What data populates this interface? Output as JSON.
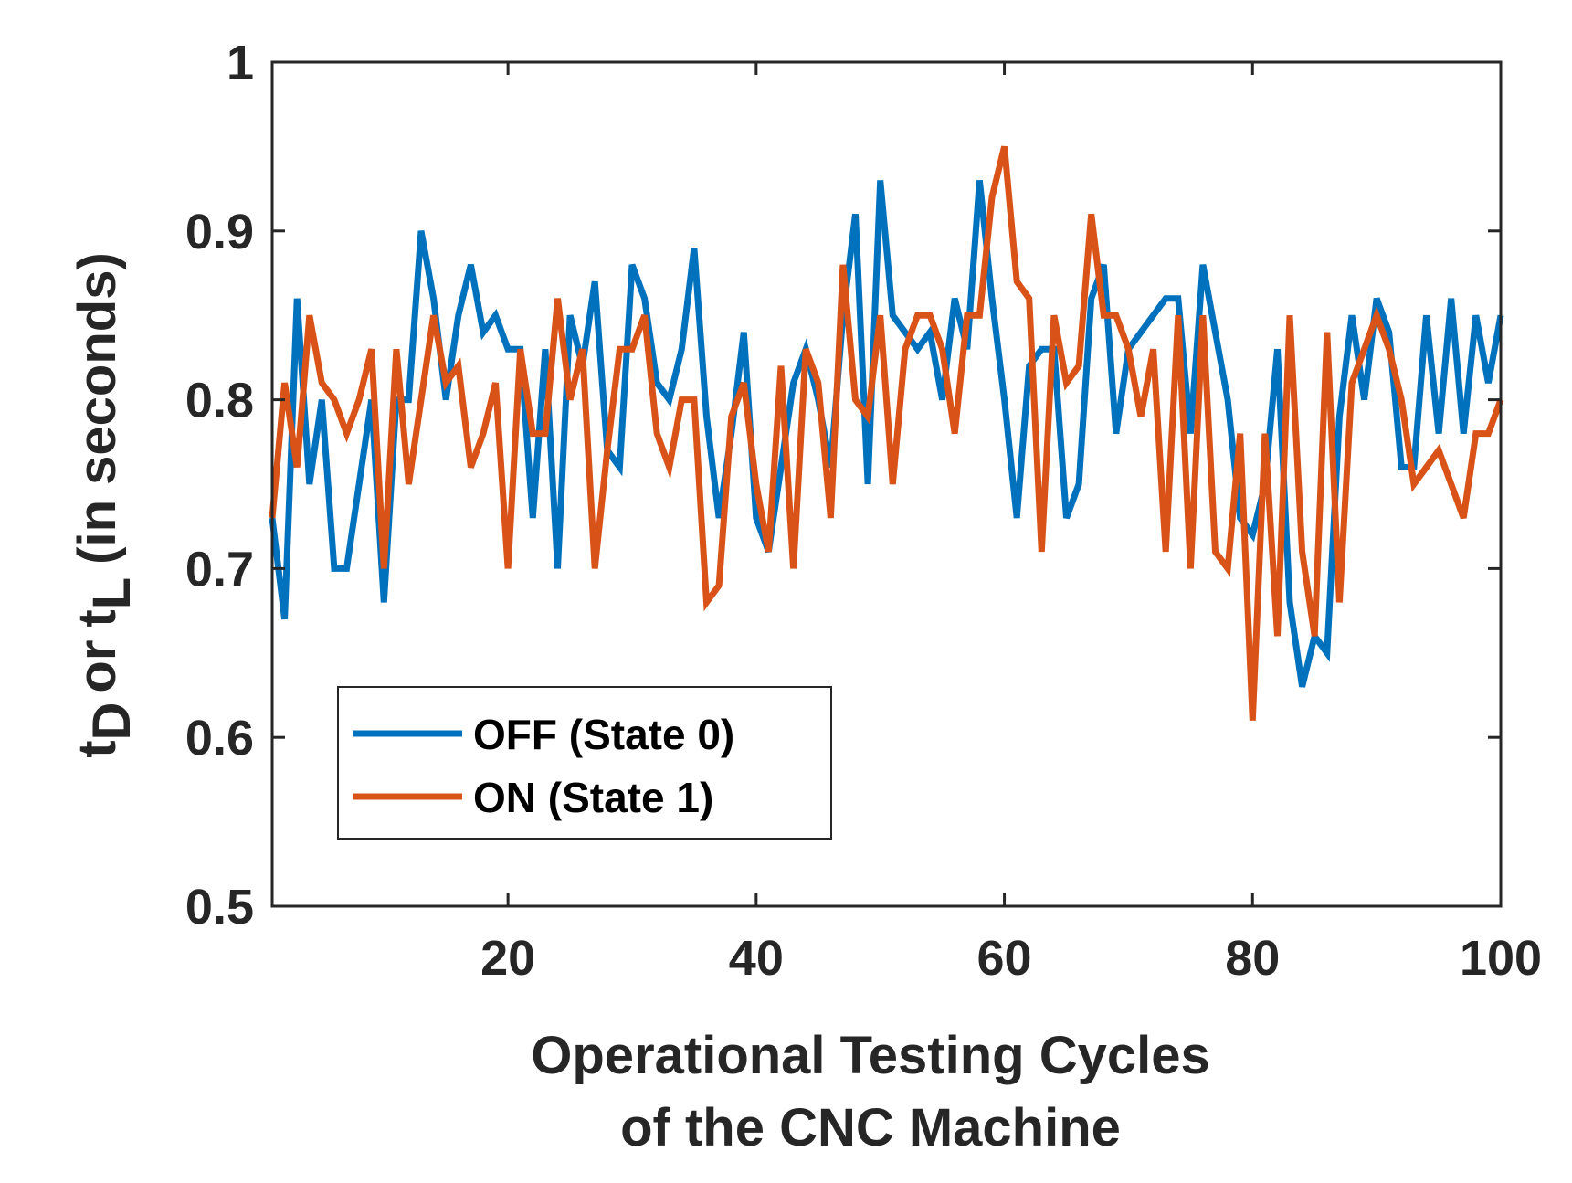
{
  "chart_data": {
    "type": "line",
    "title": "",
    "xlabel_lines": [
      "Operational Testing Cycles",
      "of the CNC Machine"
    ],
    "ylabel": {
      "t": "t",
      "sub_d": "D",
      "or": "or",
      "sub_l": "L",
      "rest": "(in seconds)"
    },
    "xlim": [
      1,
      100
    ],
    "ylim": [
      0.5,
      1
    ],
    "xticks": [
      20,
      40,
      60,
      80,
      100
    ],
    "xtick_labels": [
      "20",
      "40",
      "60",
      "80",
      "100"
    ],
    "yticks": [
      0.5,
      0.6,
      0.7,
      0.8,
      0.9,
      1.0
    ],
    "ytick_labels": [
      "0.5",
      "0.6",
      "0.7",
      "0.8",
      "0.9",
      "1"
    ],
    "grid": false,
    "legend_position": "lower-left",
    "series": [
      {
        "name": "OFF (State 0)",
        "color": "#0072BD",
        "x": [
          1,
          2,
          3,
          4,
          5,
          6,
          7,
          8,
          9,
          10,
          11,
          12,
          13,
          14,
          15,
          16,
          17,
          18,
          19,
          20,
          21,
          22,
          23,
          24,
          25,
          26,
          27,
          28,
          29,
          30,
          31,
          32,
          33,
          34,
          35,
          36,
          37,
          38,
          39,
          40,
          41,
          42,
          43,
          44,
          45,
          46,
          47,
          48,
          49,
          50,
          51,
          52,
          53,
          54,
          55,
          56,
          57,
          58,
          59,
          60,
          61,
          62,
          63,
          64,
          65,
          66,
          67,
          68,
          69,
          70,
          71,
          72,
          73,
          74,
          75,
          76,
          77,
          78,
          79,
          80,
          81,
          82,
          83,
          84,
          85,
          86,
          87,
          88,
          89,
          90,
          91,
          92,
          93,
          94,
          95,
          96,
          97,
          98,
          99,
          100
        ],
        "values": [
          0.73,
          0.67,
          0.86,
          0.75,
          0.8,
          0.7,
          0.7,
          0.75,
          0.8,
          0.68,
          0.8,
          0.8,
          0.9,
          0.86,
          0.8,
          0.85,
          0.88,
          0.84,
          0.85,
          0.83,
          0.83,
          0.73,
          0.83,
          0.7,
          0.85,
          0.82,
          0.87,
          0.77,
          0.76,
          0.88,
          0.86,
          0.81,
          0.8,
          0.83,
          0.89,
          0.79,
          0.73,
          0.78,
          0.84,
          0.73,
          0.71,
          0.76,
          0.81,
          0.83,
          0.8,
          0.76,
          0.85,
          0.91,
          0.75,
          0.93,
          0.85,
          0.84,
          0.83,
          0.84,
          0.8,
          0.86,
          0.83,
          0.93,
          0.86,
          0.8,
          0.73,
          0.82,
          0.83,
          0.83,
          0.73,
          0.75,
          0.86,
          0.88,
          0.78,
          0.83,
          0.84,
          0.85,
          0.86,
          0.86,
          0.78,
          0.88,
          0.84,
          0.8,
          0.73,
          0.72,
          0.75,
          0.83,
          0.68,
          0.63,
          0.66,
          0.65,
          0.79,
          0.85,
          0.8,
          0.86,
          0.84,
          0.76,
          0.76,
          0.85,
          0.78,
          0.86,
          0.78,
          0.85,
          0.81,
          0.85
        ]
      },
      {
        "name": "ON (State 1)",
        "color": "#D95319",
        "x": [
          1,
          2,
          3,
          4,
          5,
          6,
          7,
          8,
          9,
          10,
          11,
          12,
          13,
          14,
          15,
          16,
          17,
          18,
          19,
          20,
          21,
          22,
          23,
          24,
          25,
          26,
          27,
          28,
          29,
          30,
          31,
          32,
          33,
          34,
          35,
          36,
          37,
          38,
          39,
          40,
          41,
          42,
          43,
          44,
          45,
          46,
          47,
          48,
          49,
          50,
          51,
          52,
          53,
          54,
          55,
          56,
          57,
          58,
          59,
          60,
          61,
          62,
          63,
          64,
          65,
          66,
          67,
          68,
          69,
          70,
          71,
          72,
          73,
          74,
          75,
          76,
          77,
          78,
          79,
          80,
          81,
          82,
          83,
          84,
          85,
          86,
          87,
          88,
          89,
          90,
          91,
          92,
          93,
          94,
          95,
          96,
          97,
          98,
          99,
          100
        ],
        "values": [
          0.73,
          0.81,
          0.76,
          0.85,
          0.81,
          0.8,
          0.78,
          0.8,
          0.83,
          0.7,
          0.83,
          0.75,
          0.8,
          0.85,
          0.81,
          0.82,
          0.76,
          0.78,
          0.81,
          0.7,
          0.83,
          0.78,
          0.78,
          0.86,
          0.8,
          0.83,
          0.7,
          0.77,
          0.83,
          0.83,
          0.85,
          0.78,
          0.76,
          0.8,
          0.8,
          0.68,
          0.69,
          0.79,
          0.81,
          0.75,
          0.71,
          0.82,
          0.7,
          0.83,
          0.81,
          0.73,
          0.88,
          0.8,
          0.79,
          0.85,
          0.75,
          0.83,
          0.85,
          0.85,
          0.83,
          0.78,
          0.85,
          0.85,
          0.92,
          0.95,
          0.87,
          0.86,
          0.71,
          0.85,
          0.81,
          0.82,
          0.91,
          0.85,
          0.85,
          0.83,
          0.79,
          0.83,
          0.71,
          0.85,
          0.7,
          0.85,
          0.71,
          0.7,
          0.78,
          0.61,
          0.78,
          0.66,
          0.85,
          0.71,
          0.66,
          0.84,
          0.68,
          0.81,
          0.83,
          0.85,
          0.83,
          0.8,
          0.75,
          0.76,
          0.77,
          0.75,
          0.73,
          0.78,
          0.78,
          0.8
        ]
      }
    ]
  }
}
